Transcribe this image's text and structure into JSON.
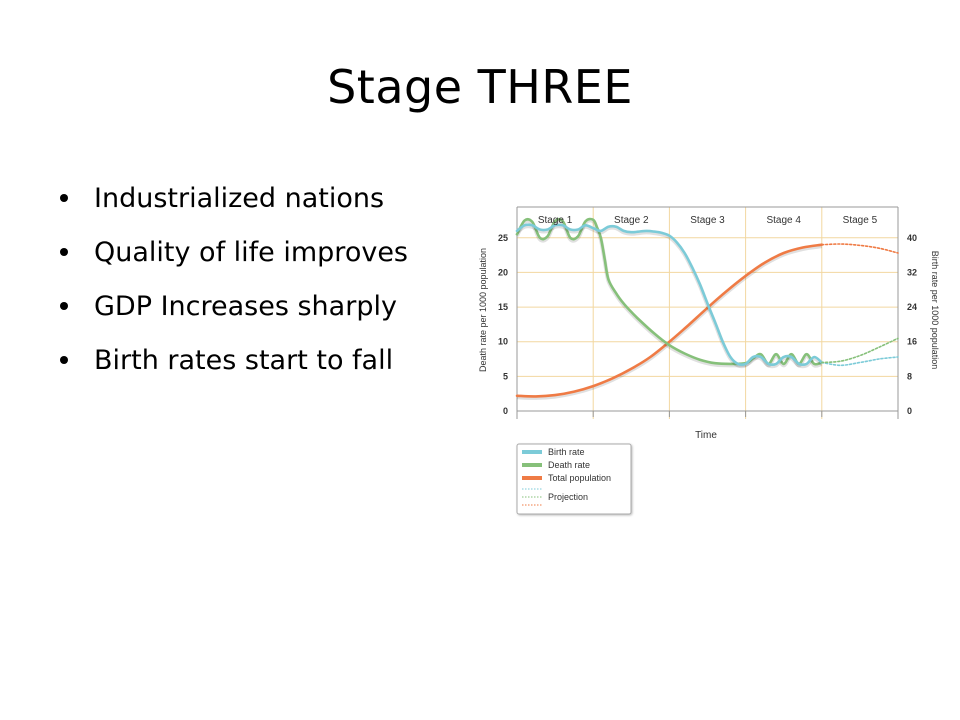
{
  "slide": {
    "title": "Stage THREE",
    "bullets": [
      "Industrialized nations",
      "Quality of life improves",
      "GDP Increases sharply",
      "Birth rates start to fall"
    ]
  },
  "chart_data": {
    "type": "line",
    "title": "",
    "xlabel": "Time",
    "ylabel_left": "Death rate per 1000 population",
    "ylabel_right": "Birth rate per 1000 population",
    "stages": [
      "Stage 1",
      "Stage 2",
      "Stage 3",
      "Stage 4",
      "Stage 5"
    ],
    "x_range": [
      0,
      5
    ],
    "left_axis": {
      "range": [
        0,
        28
      ],
      "ticks": [
        0,
        5,
        10,
        15,
        20,
        25
      ]
    },
    "right_axis": {
      "range": [
        0,
        44.8
      ],
      "ticks": [
        0,
        8,
        16,
        24,
        32,
        40
      ]
    },
    "grid": true,
    "legend_position": "bottom-left",
    "legend": [
      "Birth rate",
      "Death rate",
      "Total population",
      "Projection"
    ],
    "colors": {
      "birth": "#7ccbd8",
      "death": "#86c07a",
      "population": "#ef7b45",
      "grid": "#f2d7a0",
      "axis": "#999999"
    },
    "series": [
      {
        "name": "Birth rate",
        "axis": "left",
        "x": [
          0,
          0.1,
          0.2,
          0.3,
          0.4,
          0.5,
          0.6,
          0.7,
          0.8,
          0.9,
          1.0,
          1.1,
          1.2,
          1.3,
          1.4,
          1.5,
          1.6,
          1.7,
          1.8,
          1.9,
          2.0,
          2.1,
          2.2,
          2.3,
          2.4,
          2.5,
          2.6,
          2.7,
          2.8,
          2.9,
          3.0,
          3.1,
          3.2,
          3.3,
          3.4,
          3.5,
          3.6,
          3.7,
          3.8,
          3.9,
          4.0
        ],
        "values": [
          26,
          26.8,
          26.8,
          26.2,
          26.2,
          26.8,
          26.8,
          26.2,
          26.2,
          26.8,
          26.4,
          26.0,
          26.6,
          26.6,
          26.0,
          25.8,
          25.9,
          26.0,
          25.9,
          25.7,
          25.3,
          24.3,
          22.8,
          20.7,
          18.3,
          15.5,
          12.8,
          10.0,
          7.8,
          6.8,
          6.8,
          7.8,
          7.8,
          6.8,
          6.8,
          7.8,
          7.8,
          6.8,
          6.8,
          7.8,
          7.0
        ]
      },
      {
        "name": "Death rate",
        "axis": "left",
        "x": [
          0,
          0.1,
          0.2,
          0.3,
          0.4,
          0.5,
          0.6,
          0.7,
          0.8,
          0.9,
          1.0,
          1.05,
          1.1,
          1.15,
          1.2,
          1.3,
          1.4,
          1.5,
          1.6,
          1.8,
          2.0,
          2.2,
          2.4,
          2.6,
          2.8,
          3.0,
          3.1,
          3.2,
          3.3,
          3.4,
          3.5,
          3.6,
          3.7,
          3.8,
          3.9,
          4.0
        ],
        "values": [
          25.5,
          27.5,
          27.3,
          25.0,
          25.2,
          27.4,
          27.4,
          25.0,
          25.2,
          27.4,
          27.6,
          26.5,
          25.0,
          22.0,
          19.0,
          17.0,
          15.5,
          14.3,
          13.2,
          11.2,
          9.5,
          8.3,
          7.4,
          6.9,
          6.8,
          6.9,
          7.6,
          8.2,
          6.8,
          8.2,
          6.8,
          8.2,
          6.8,
          8.2,
          6.8,
          7.0
        ]
      },
      {
        "name": "Total population",
        "axis": "left",
        "x": [
          0,
          0.25,
          0.5,
          0.75,
          1.0,
          1.25,
          1.5,
          1.75,
          2.0,
          2.25,
          2.5,
          2.75,
          3.0,
          3.25,
          3.5,
          3.75,
          4.0
        ],
        "values": [
          2.2,
          2.1,
          2.3,
          2.8,
          3.6,
          4.7,
          6.1,
          7.8,
          10.0,
          12.4,
          14.9,
          17.3,
          19.5,
          21.4,
          22.8,
          23.6,
          24.0
        ]
      },
      {
        "name": "Birth rate projection",
        "axis": "left",
        "x": [
          4.0,
          4.25,
          4.5,
          4.75,
          5.0
        ],
        "values": [
          7.0,
          6.6,
          7.0,
          7.5,
          7.8
        ]
      },
      {
        "name": "Death rate projection",
        "axis": "left",
        "x": [
          4.0,
          4.25,
          4.5,
          4.75,
          5.0
        ],
        "values": [
          7.0,
          7.2,
          8.0,
          9.2,
          10.5
        ]
      },
      {
        "name": "Total population projection",
        "axis": "left",
        "x": [
          4.0,
          4.25,
          4.5,
          4.75,
          5.0
        ],
        "values": [
          24.0,
          24.1,
          23.9,
          23.5,
          22.8
        ]
      }
    ]
  }
}
